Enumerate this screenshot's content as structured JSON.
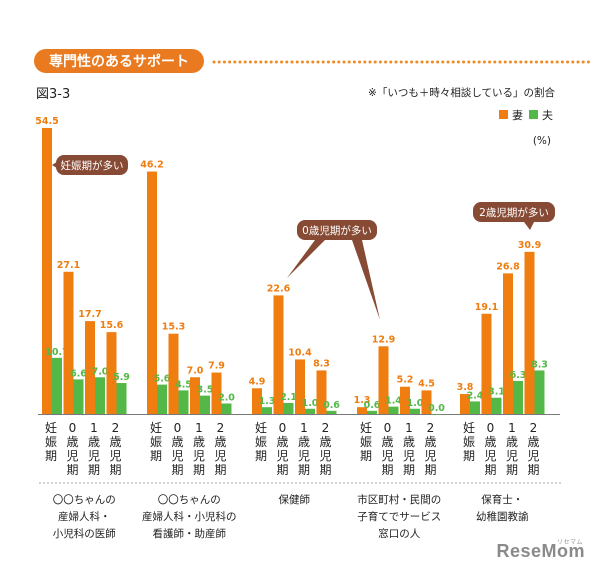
{
  "header": {
    "title": "専門性のあるサポート",
    "figure_label": "図3-3",
    "note": "※「いつも＋時々相談している」の割合",
    "legend": [
      {
        "label": "妻",
        "color": "#ef7d0f"
      },
      {
        "label": "夫",
        "color": "#54b848"
      }
    ],
    "unit": "(%)"
  },
  "colors": {
    "wife": "#ef7d0f",
    "husband": "#54b848",
    "title_bg": "#ea7a20",
    "callout_bg": "#874a34",
    "dots": "#ef8a22"
  },
  "callouts": {
    "c1": "妊娠期が多い",
    "c2": "0歳児期が多い",
    "c3": "2歳児期が多い"
  },
  "watermark": {
    "main": "ReseMom",
    "sub": "リセマム"
  },
  "chart_data": {
    "type": "bar",
    "ylim": [
      0,
      60
    ],
    "period_labels": [
      "妊娠期",
      "0歳児期",
      "1歳児期",
      "2歳児期"
    ],
    "groups": [
      {
        "label": "〇〇ちゃんの\n産婦人科・\n小児科の医師",
        "wife": [
          54.5,
          27.1,
          17.7,
          15.6
        ],
        "husband": [
          10.7,
          6.6,
          7.0,
          5.9
        ]
      },
      {
        "label": "〇〇ちゃんの\n産婦人科・小児科の\n看護師・助産師",
        "wife": [
          46.2,
          15.3,
          7.0,
          7.9
        ],
        "husband": [
          5.6,
          4.5,
          3.5,
          2.0
        ]
      },
      {
        "label": "保健師",
        "wife": [
          4.9,
          22.6,
          10.4,
          8.3
        ],
        "husband": [
          1.3,
          2.1,
          1.0,
          0.6
        ]
      },
      {
        "label": "市区町村・民間の\n子育てでサービス\n窓口の人",
        "wife": [
          1.3,
          12.9,
          5.2,
          4.5
        ],
        "husband": [
          0.6,
          1.4,
          1.0,
          0.0
        ]
      },
      {
        "label": "保育士・\n幼稚園教諭",
        "wife": [
          3.8,
          19.1,
          26.8,
          30.9
        ],
        "husband": [
          2.4,
          3.1,
          6.3,
          8.3
        ]
      }
    ]
  }
}
